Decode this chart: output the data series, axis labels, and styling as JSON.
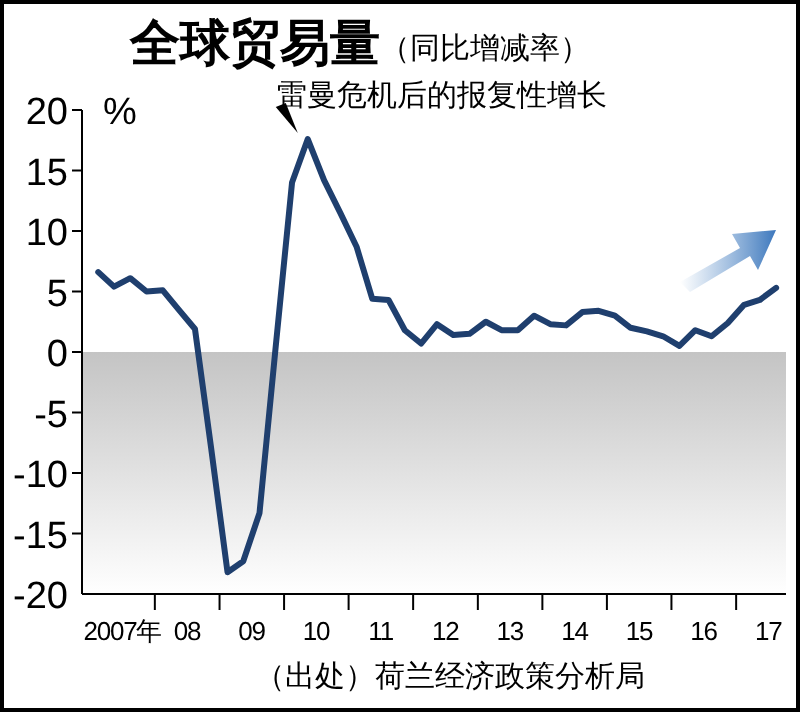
{
  "chart_data": {
    "type": "line",
    "title": "全球贸易量",
    "subtitle": "（同比增减率）",
    "ylabel": "%",
    "annotations": [
      {
        "text": "雷曼危机后的报复性增长",
        "x": "2010-05-15",
        "y": 17.6
      },
      "（出处）荷兰经济政策分析局"
    ],
    "x": [
      "2007-02-15",
      "2007-05-15",
      "2007-08-15",
      "2007-11-15",
      "2008-02-15",
      "2008-05-15",
      "2008-08-15",
      "2008-11-15",
      "2009-02-15",
      "2009-05-15",
      "2009-08-15",
      "2009-11-15",
      "2010-02-15",
      "2010-05-15",
      "2010-08-15",
      "2010-11-15",
      "2011-02-15",
      "2011-05-15",
      "2011-08-15",
      "2011-11-15",
      "2012-02-15",
      "2012-05-15",
      "2012-08-15",
      "2012-11-15",
      "2013-02-15",
      "2013-05-15",
      "2013-08-15",
      "2013-11-15",
      "2014-02-15",
      "2014-05-15",
      "2014-08-15",
      "2014-11-15",
      "2015-02-15",
      "2015-05-15",
      "2015-08-15",
      "2015-11-15",
      "2016-02-15",
      "2016-05-15",
      "2016-08-15",
      "2016-11-15",
      "2017-02-15",
      "2017-05-15",
      "2017-08-15"
    ],
    "series": [
      {
        "color": "#1f3f6e",
        "values": [
          6.6,
          5.4,
          6.1,
          5.0,
          5.1,
          3.5,
          1.9,
          -8,
          -18.2,
          -17.3,
          -13.3,
          0.5,
          14.0,
          17.6,
          14.2,
          11.5,
          8.7,
          4.4,
          4.3,
          1.8,
          0.7,
          2.3,
          1.4,
          1.5,
          2.5,
          1.8,
          1.8,
          3.0,
          2.3,
          2.2,
          3.3,
          3.4,
          3.0,
          2.0,
          1.7,
          1.3,
          0.5,
          1.8,
          1.3,
          2.4,
          3.9,
          4.3,
          5.3
        ]
      }
    ],
    "xlim": [
      "2006-11-15",
      "2017-10-10"
    ],
    "xticks": [
      {
        "value": "2007-07-01",
        "label": "2007年"
      },
      {
        "value": "2008-01-01",
        "label": null
      },
      {
        "value": "2008-07-01",
        "label": "08"
      },
      {
        "value": "2009-01-01",
        "label": null
      },
      {
        "value": "2009-07-01",
        "label": "09"
      },
      {
        "value": "2010-01-01",
        "label": null
      },
      {
        "value": "2010-07-01",
        "label": "10"
      },
      {
        "value": "2011-01-01",
        "label": null
      },
      {
        "value": "2011-07-01",
        "label": "11"
      },
      {
        "value": "2012-01-01",
        "label": null
      },
      {
        "value": "2012-07-01",
        "label": "12"
      },
      {
        "value": "2013-01-01",
        "label": null
      },
      {
        "value": "2013-07-01",
        "label": "13"
      },
      {
        "value": "2014-01-01",
        "label": null
      },
      {
        "value": "2014-07-01",
        "label": "14"
      },
      {
        "value": "2015-01-01",
        "label": null
      },
      {
        "value": "2015-07-01",
        "label": "15"
      },
      {
        "value": "2016-01-01",
        "label": null
      },
      {
        "value": "2016-07-01",
        "label": "16"
      },
      {
        "value": "2017-01-01",
        "label": null
      },
      {
        "value": "2017-07-01",
        "label": "17"
      }
    ],
    "ylim": [
      -20,
      20
    ],
    "yticks": [
      -20,
      -15,
      -10,
      -5,
      0,
      5,
      10,
      15,
      20
    ],
    "bands": [
      {
        "axis": "y",
        "from": -20,
        "to": 0,
        "color": "#c4c4c4"
      }
    ],
    "grid": false,
    "marker": "none",
    "line_style": "solid"
  }
}
